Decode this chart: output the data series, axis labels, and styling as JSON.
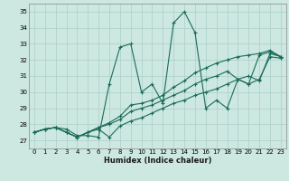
{
  "xlabel": "Humidex (Indice chaleur)",
  "xlim": [
    -0.5,
    23.5
  ],
  "ylim": [
    26.5,
    35.5
  ],
  "xticks": [
    0,
    1,
    2,
    3,
    4,
    5,
    6,
    7,
    8,
    9,
    10,
    11,
    12,
    13,
    14,
    15,
    16,
    17,
    18,
    19,
    20,
    21,
    22,
    23
  ],
  "yticks": [
    27,
    28,
    29,
    30,
    31,
    32,
    33,
    34,
    35
  ],
  "bg_color": "#cce8e0",
  "grid_color": "#aacfc8",
  "line_color": "#1a6b5a",
  "series": [
    [
      27.5,
      27.7,
      27.8,
      27.7,
      27.3,
      27.3,
      27.2,
      30.5,
      32.8,
      33.0,
      30.0,
      30.5,
      29.3,
      34.3,
      35.0,
      33.7,
      29.0,
      29.5,
      29.0,
      30.8,
      30.5,
      32.3,
      32.5,
      32.2
    ],
    [
      27.5,
      27.7,
      27.8,
      27.5,
      27.2,
      27.5,
      27.8,
      28.1,
      28.5,
      29.2,
      29.3,
      29.5,
      29.8,
      30.3,
      30.7,
      31.2,
      31.5,
      31.8,
      32.0,
      32.2,
      32.3,
      32.4,
      32.6,
      32.2
    ],
    [
      27.5,
      27.7,
      27.8,
      27.5,
      27.2,
      27.5,
      27.8,
      28.0,
      28.3,
      28.8,
      29.0,
      29.2,
      29.5,
      29.8,
      30.1,
      30.5,
      30.8,
      31.0,
      31.3,
      30.8,
      30.5,
      30.8,
      32.2,
      32.1
    ],
    [
      27.5,
      27.7,
      27.8,
      27.5,
      27.2,
      27.5,
      27.7,
      27.2,
      27.9,
      28.2,
      28.4,
      28.7,
      29.0,
      29.3,
      29.5,
      29.8,
      30.0,
      30.2,
      30.5,
      30.8,
      31.0,
      30.7,
      32.4,
      32.2
    ]
  ]
}
